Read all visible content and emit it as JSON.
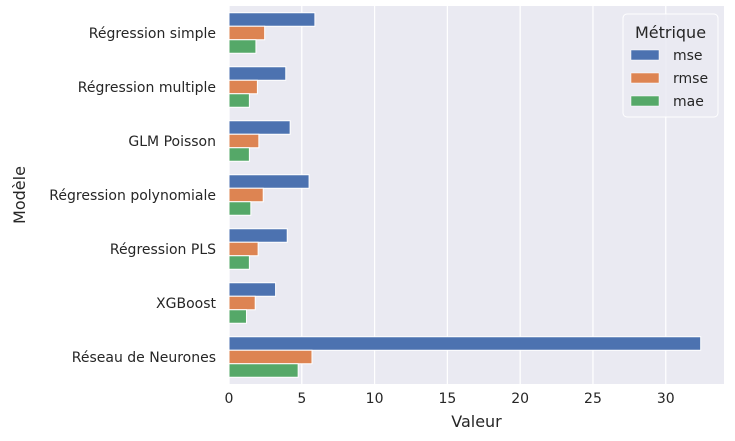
{
  "chart_data": {
    "type": "bar",
    "orientation": "horizontal",
    "xlabel": "Valeur",
    "ylabel": "Modèle",
    "xlim": [
      0,
      34
    ],
    "xticks": [
      0,
      5,
      10,
      15,
      20,
      25,
      30
    ],
    "grid": true,
    "legend": {
      "title": "Métrique",
      "placement": "top-right"
    },
    "categories": [
      "Régression simple",
      "Régression multiple",
      "GLM Poisson",
      "Régression polynomiale",
      "Régression PLS",
      "XGBoost",
      "Réseau de Neurones"
    ],
    "series": [
      {
        "name": "mse",
        "color": "#4c72b0",
        "values": [
          5.9,
          3.9,
          4.2,
          5.5,
          4.0,
          3.2,
          32.4
        ]
      },
      {
        "name": "rmse",
        "color": "#dd8452",
        "values": [
          2.45,
          1.95,
          2.05,
          2.35,
          2.0,
          1.8,
          5.7
        ]
      },
      {
        "name": "mae",
        "color": "#55a868",
        "values": [
          1.85,
          1.4,
          1.4,
          1.5,
          1.4,
          1.2,
          4.75
        ]
      }
    ]
  }
}
